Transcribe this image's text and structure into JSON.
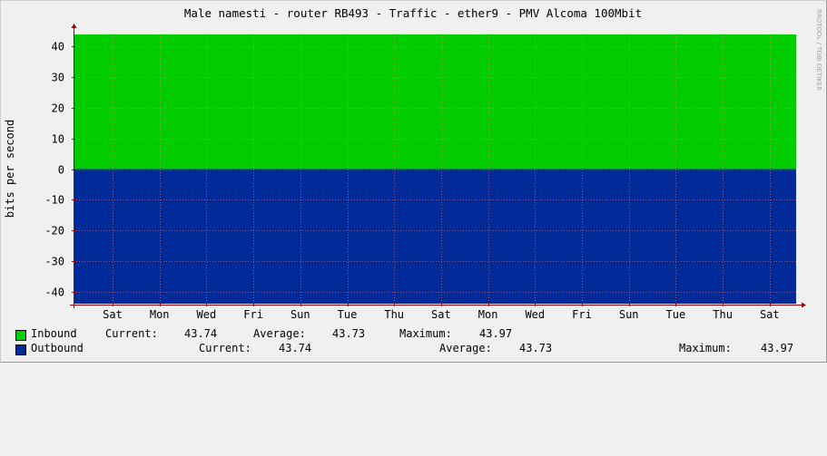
{
  "chart_data": {
    "type": "area",
    "title": "Male namesti - router RB493 - Traffic - ether9 - PMV Alcoma 100Mbit",
    "ylabel": "bits per second",
    "watermark": "RRDTOOL / TOBI OETIKER",
    "ylim": [
      -44,
      44
    ],
    "yticks": [
      40,
      30,
      20,
      10,
      0,
      -10,
      -20,
      -30,
      -40
    ],
    "ytick_labels": [
      "40",
      "30",
      "20",
      "10",
      "0",
      "-10",
      "-20",
      "-30",
      "-40"
    ],
    "x": [
      "Sat",
      "Mon",
      "Wed",
      "Fri",
      "Sun",
      "Tue",
      "Thu",
      "Sat",
      "Mon",
      "Wed",
      "Fri",
      "Sun",
      "Tue",
      "Thu",
      "Sat"
    ],
    "grid": true,
    "series": [
      {
        "name": "Inbound",
        "color": "#00cc00",
        "sign": "positive",
        "value": 43.74
      },
      {
        "name": "Outbound",
        "color": "#002a97",
        "sign": "negative",
        "value": 43.74
      }
    ],
    "colors": {
      "background": "#f0f0f0",
      "plot_bg": "#ffffff",
      "grid": "#ff8080",
      "axis": "#a00000",
      "inbound": "#00cc00",
      "outbound": "#002a97"
    }
  },
  "legend": {
    "inbound": {
      "name": "Inbound",
      "current_label": "Current:",
      "current": "43.74",
      "average_label": "Average:",
      "average": "43.73",
      "maximum_label": "Maximum:",
      "maximum": "43.97"
    },
    "outbound": {
      "name": "Outbound",
      "current_label": "Current:",
      "current": "43.74",
      "average_label": "Average:",
      "average": "43.73",
      "maximum_label": "Maximum:",
      "maximum": "43.97"
    }
  }
}
